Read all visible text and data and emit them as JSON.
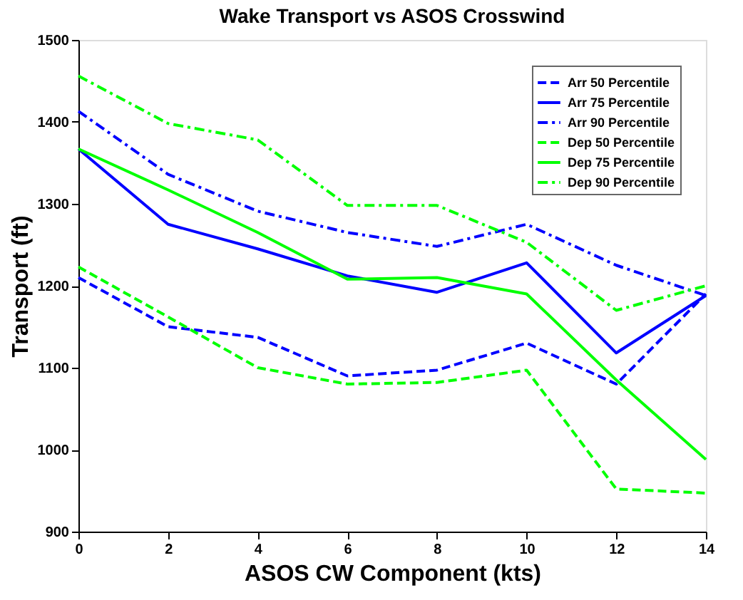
{
  "chart_data": {
    "type": "line",
    "title": "Wake Transport vs ASOS Crosswind",
    "xlabel": "ASOS CW Component (kts)",
    "ylabel": "Transport (ft)",
    "x": [
      0,
      2,
      4,
      6,
      8,
      10,
      12,
      14
    ],
    "series": [
      {
        "name": "Arr 50 Percentile",
        "color": "#0000ff",
        "line_style": "dashed",
        "values": [
          1210,
          1150,
          1137,
          1090,
          1097,
          1130,
          1080,
          1190
        ]
      },
      {
        "name": "Arr 75 Percentile",
        "color": "#0000ff",
        "line_style": "solid",
        "values": [
          1367,
          1275,
          1245,
          1212,
          1192,
          1228,
          1118,
          1188
        ]
      },
      {
        "name": "Arr 90 Percentile",
        "color": "#0000ff",
        "line_style": "dashdot",
        "values": [
          1413,
          1336,
          1291,
          1265,
          1248,
          1275,
          1225,
          1188
        ]
      },
      {
        "name": "Dep 50 Percentile",
        "color": "#00ff00",
        "line_style": "dashed",
        "values": [
          1223,
          1162,
          1100,
          1080,
          1082,
          1097,
          952,
          947
        ]
      },
      {
        "name": "Dep 75 Percentile",
        "color": "#00ff00",
        "line_style": "solid",
        "values": [
          1367,
          1317,
          1265,
          1208,
          1210,
          1190,
          1085,
          988
        ]
      },
      {
        "name": "Dep 90 Percentile",
        "color": "#00ff00",
        "line_style": "dashdot",
        "values": [
          1456,
          1398,
          1378,
          1298,
          1298,
          1253,
          1170,
          1200
        ]
      }
    ],
    "xlim": [
      0,
      14
    ],
    "xticks": [
      0,
      2,
      4,
      6,
      8,
      10,
      12,
      14
    ],
    "ylim": [
      900,
      1500
    ],
    "yticks": [
      900,
      1000,
      1100,
      1200,
      1300,
      1400,
      1500
    ],
    "grid": false,
    "legend": "top right",
    "marker": "none"
  }
}
